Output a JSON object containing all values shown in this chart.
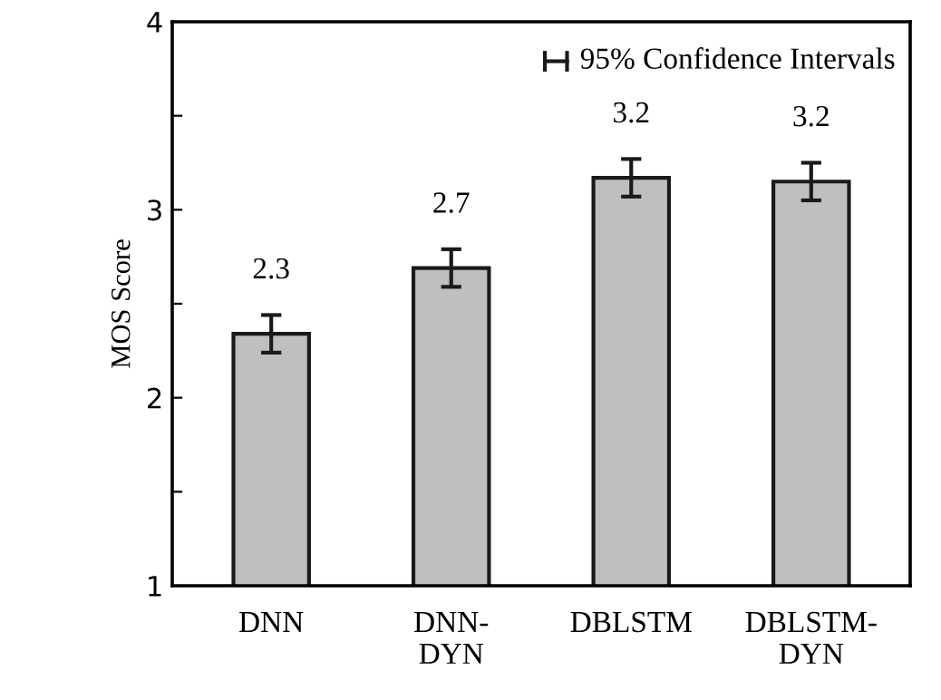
{
  "chart_data": {
    "type": "bar",
    "ylabel": "MOS Score",
    "categories": [
      "DNN",
      "DNN-\nDYN",
      "DBLSTM",
      "DBLSTM-\nDYN"
    ],
    "values": [
      2.34,
      2.69,
      3.17,
      3.15
    ],
    "errors": [
      0.1,
      0.1,
      0.1,
      0.1
    ],
    "value_labels": [
      "2.3",
      "2.7",
      "3.2",
      "3.2"
    ],
    "color": "#bfbfbf",
    "ylim": [
      1,
      4
    ],
    "yticks": [
      1,
      {
        "value": 1.5,
        "label": null
      },
      2,
      {
        "value": 2.5,
        "label": null
      },
      3,
      {
        "value": 3.5,
        "label": null
      },
      4
    ],
    "annotations": [
      "95% Confidence Intervals"
    ],
    "grid": false,
    "legend": false
  }
}
